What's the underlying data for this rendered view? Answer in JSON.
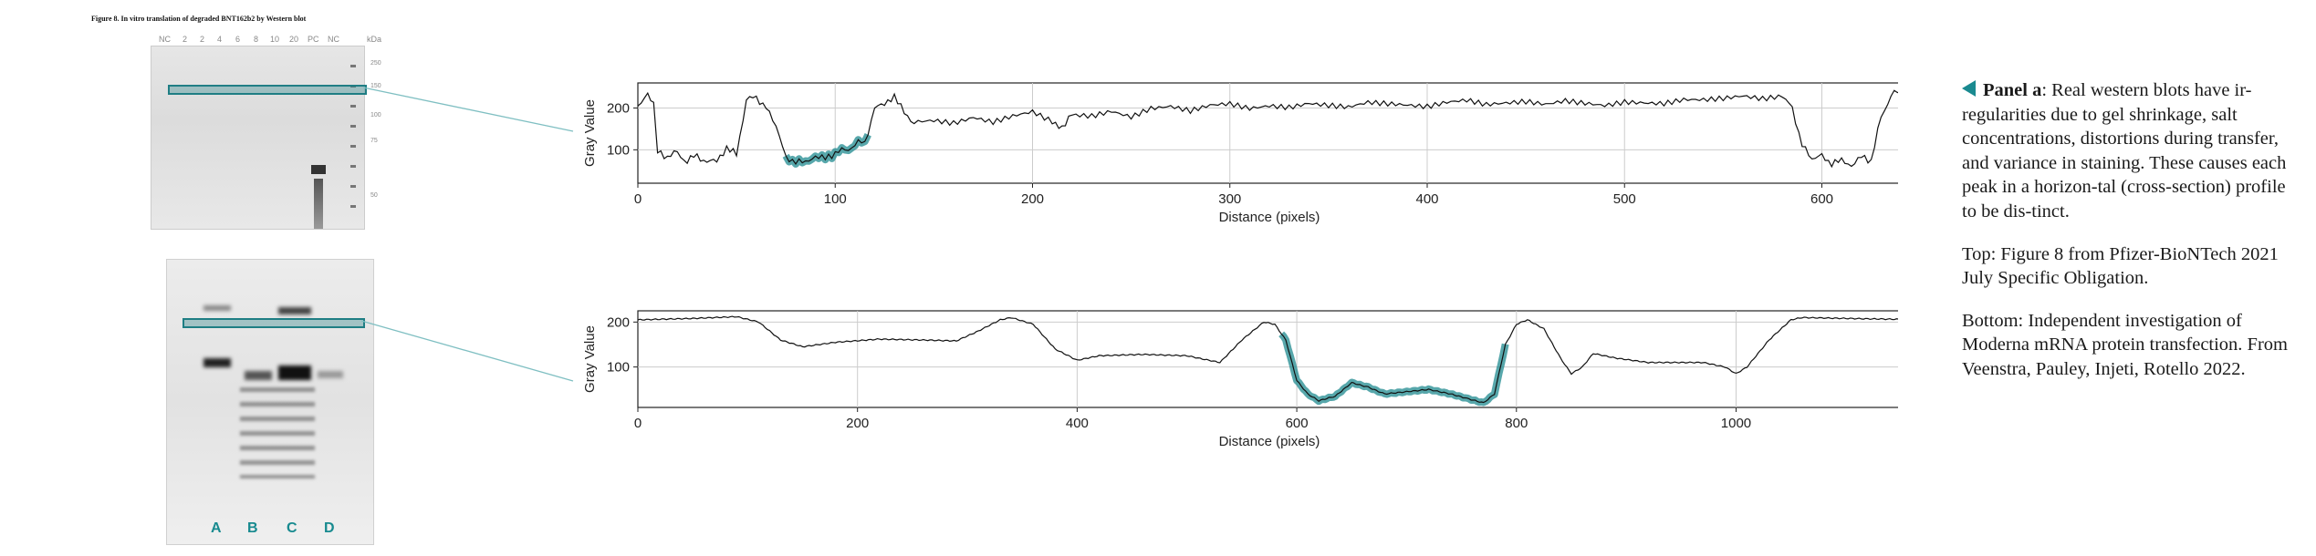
{
  "figure": {
    "title": "Figure 8.   In vitro translation of degraded BNT162b2 by Western blot",
    "top_lane_headers": [
      "NC",
      "2",
      "2",
      "4",
      "6",
      "8",
      "10",
      "20",
      "PC",
      "NC",
      "kDa"
    ],
    "mw_markers": [
      "250",
      "150",
      "100",
      "75",
      "50"
    ],
    "bottom_lane_labels": [
      "A",
      "B",
      "C",
      "D"
    ]
  },
  "caption": {
    "panel_label": "Panel a",
    "panel_text": ": Real western blots have ir-regularities due to gel shrinkage, salt concentrations, distortions during transfer, and variance in staining. These causes each peak in a horizon-tal (cross-section) profile to be dis-tinct.",
    "top_note": "Top: Figure 8 from Pfizer-BioNTech 2021 July Specific Obligation.",
    "bottom_note": "Bottom: Independent investigation of Moderna mRNA protein transfection. From Veenstra, Pauley, Injeti, Rotello 2022."
  },
  "colors": {
    "highlight": "#1f8a8f",
    "line": "#111111",
    "grid": "#cccccc"
  },
  "chart_data": [
    {
      "type": "line",
      "xlabel": "Distance (pixels)",
      "ylabel": "Gray Value",
      "xlim": [
        0,
        640
      ],
      "ylim": [
        20,
        260
      ],
      "xticks": [
        0,
        100,
        200,
        300,
        400,
        500,
        600
      ],
      "yticks": [
        100,
        200
      ],
      "grid": true,
      "highlight_range": [
        75,
        118
      ],
      "series": [
        {
          "points": [
            [
              0,
              205
            ],
            [
              5,
              230
            ],
            [
              8,
              210
            ],
            [
              10,
              100
            ],
            [
              15,
              80
            ],
            [
              20,
              95
            ],
            [
              25,
              70
            ],
            [
              30,
              90
            ],
            [
              35,
              65
            ],
            [
              40,
              80
            ],
            [
              45,
              100
            ],
            [
              50,
              90
            ],
            [
              55,
              220
            ],
            [
              60,
              225
            ],
            [
              65,
              200
            ],
            [
              70,
              160
            ],
            [
              75,
              80
            ],
            [
              80,
              70
            ],
            [
              85,
              75
            ],
            [
              90,
              78
            ],
            [
              95,
              85
            ],
            [
              100,
              90
            ],
            [
              105,
              100
            ],
            [
              110,
              112
            ],
            [
              115,
              120
            ],
            [
              120,
              195
            ],
            [
              125,
              215
            ],
            [
              130,
              225
            ],
            [
              135,
              190
            ],
            [
              140,
              165
            ],
            [
              150,
              170
            ],
            [
              160,
              165
            ],
            [
              170,
              180
            ],
            [
              180,
              170
            ],
            [
              190,
              185
            ],
            [
              200,
              195
            ],
            [
              210,
              170
            ],
            [
              215,
              150
            ],
            [
              220,
              185
            ],
            [
              230,
              180
            ],
            [
              240,
              190
            ],
            [
              250,
              175
            ],
            [
              260,
              195
            ],
            [
              270,
              200
            ],
            [
              280,
              190
            ],
            [
              290,
              205
            ],
            [
              300,
              210
            ],
            [
              310,
              200
            ],
            [
              320,
              208
            ],
            [
              330,
              205
            ],
            [
              340,
              215
            ],
            [
              350,
              210
            ],
            [
              360,
              205
            ],
            [
              370,
              215
            ],
            [
              380,
              210
            ],
            [
              390,
              205
            ],
            [
              400,
              200
            ],
            [
              410,
              210
            ],
            [
              420,
              215
            ],
            [
              430,
              205
            ],
            [
              440,
              210
            ],
            [
              450,
              215
            ],
            [
              460,
              210
            ],
            [
              470,
              220
            ],
            [
              480,
              215
            ],
            [
              490,
              210
            ],
            [
              500,
              218
            ],
            [
              510,
              215
            ],
            [
              520,
              212
            ],
            [
              530,
              220
            ],
            [
              540,
              218
            ],
            [
              550,
              220
            ],
            [
              560,
              225
            ],
            [
              570,
              218
            ],
            [
              580,
              225
            ],
            [
              585,
              200
            ],
            [
              590,
              110
            ],
            [
              595,
              80
            ],
            [
              600,
              85
            ],
            [
              605,
              65
            ],
            [
              610,
              80
            ],
            [
              615,
              55
            ],
            [
              620,
              90
            ],
            [
              625,
              70
            ],
            [
              630,
              180
            ],
            [
              635,
              230
            ],
            [
              640,
              240
            ]
          ]
        }
      ]
    },
    {
      "type": "line",
      "xlabel": "Distance (pixels)",
      "ylabel": "Gray Value",
      "xlim": [
        0,
        1150
      ],
      "ylim": [
        10,
        225
      ],
      "xticks": [
        0,
        200,
        400,
        600,
        800,
        1000
      ],
      "yticks": [
        100,
        200
      ],
      "grid": true,
      "highlight_range": [
        585,
        790
      ],
      "series": [
        {
          "points": [
            [
              0,
              205
            ],
            [
              50,
              208
            ],
            [
              90,
              212
            ],
            [
              110,
              200
            ],
            [
              130,
              160
            ],
            [
              150,
              145
            ],
            [
              180,
              155
            ],
            [
              220,
              162
            ],
            [
              260,
              160
            ],
            [
              290,
              158
            ],
            [
              310,
              180
            ],
            [
              330,
              205
            ],
            [
              340,
              210
            ],
            [
              360,
              195
            ],
            [
              380,
              140
            ],
            [
              400,
              115
            ],
            [
              420,
              125
            ],
            [
              460,
              128
            ],
            [
              500,
              125
            ],
            [
              530,
              110
            ],
            [
              550,
              160
            ],
            [
              570,
              200
            ],
            [
              580,
              195
            ],
            [
              590,
              160
            ],
            [
              600,
              70
            ],
            [
              610,
              40
            ],
            [
              620,
              25
            ],
            [
              635,
              35
            ],
            [
              650,
              65
            ],
            [
              665,
              55
            ],
            [
              680,
              40
            ],
            [
              700,
              45
            ],
            [
              720,
              50
            ],
            [
              740,
              40
            ],
            [
              755,
              30
            ],
            [
              770,
              20
            ],
            [
              780,
              40
            ],
            [
              790,
              150
            ],
            [
              800,
              195
            ],
            [
              810,
              205
            ],
            [
              825,
              185
            ],
            [
              840,
              120
            ],
            [
              850,
              85
            ],
            [
              860,
              100
            ],
            [
              870,
              130
            ],
            [
              890,
              120
            ],
            [
              920,
              110
            ],
            [
              950,
              110
            ],
            [
              970,
              110
            ],
            [
              990,
              100
            ],
            [
              1000,
              85
            ],
            [
              1010,
              100
            ],
            [
              1030,
              160
            ],
            [
              1050,
              205
            ],
            [
              1060,
              210
            ],
            [
              1100,
              208
            ],
            [
              1150,
              206
            ]
          ]
        }
      ]
    }
  ]
}
